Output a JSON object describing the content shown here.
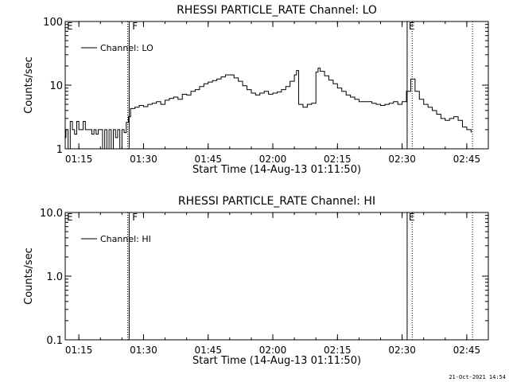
{
  "footer": "21-Oct-2021 14:54",
  "chart_data": [
    {
      "type": "line",
      "title": "RHESSI PARTICLE_RATE Channel: LO",
      "xlabel": "Start Time (14-Aug-13 01:11:50)",
      "ylabel": "Counts/sec",
      "xlim": [
        "01:11:50",
        "02:50:00"
      ],
      "ylim": [
        1,
        100
      ],
      "yscale": "log",
      "x_ticks": [
        "01:15",
        "01:30",
        "01:45",
        "02:00",
        "02:15",
        "02:30",
        "02:45"
      ],
      "y_ticks": [
        "1",
        "10",
        "100"
      ],
      "legend": "top-left",
      "series": [
        {
          "name": "Channel: LO",
          "x": [
            "01:11:50",
            "01:12:00",
            "01:12:30",
            "01:13:00",
            "01:13:30",
            "01:14:00",
            "01:14:30",
            "01:15:00",
            "01:15:30",
            "01:16:00",
            "01:16:30",
            "01:17:00",
            "01:17:30",
            "01:18:00",
            "01:18:30",
            "01:19:00",
            "01:19:30",
            "01:20:00",
            "01:20:30",
            "01:21:00",
            "01:21:30",
            "01:22:00",
            "01:22:30",
            "01:23:00",
            "01:23:30",
            "01:24:00",
            "01:24:30",
            "01:25:00",
            "01:25:30",
            "01:26:00",
            "01:26:30",
            "01:27:00",
            "01:28:00",
            "01:29:00",
            "01:30:00",
            "01:31:00",
            "01:32:00",
            "01:33:00",
            "01:34:00",
            "01:35:00",
            "01:36:00",
            "01:37:00",
            "01:38:00",
            "01:39:00",
            "01:40:00",
            "01:41:00",
            "01:42:00",
            "01:43:00",
            "01:44:00",
            "01:45:00",
            "01:46:00",
            "01:47:00",
            "01:48:00",
            "01:49:00",
            "01:50:00",
            "01:51:00",
            "01:52:00",
            "01:53:00",
            "01:54:00",
            "01:55:00",
            "01:56:00",
            "01:57:00",
            "01:58:00",
            "01:59:00",
            "02:00:00",
            "02:01:00",
            "02:02:00",
            "02:03:00",
            "02:04:00",
            "02:05:00",
            "02:05:30",
            "02:06:00",
            "02:07:00",
            "02:08:00",
            "02:09:00",
            "02:10:00",
            "02:10:30",
            "02:11:00",
            "02:12:00",
            "02:13:00",
            "02:14:00",
            "02:15:00",
            "02:16:00",
            "02:17:00",
            "02:18:00",
            "02:19:00",
            "02:20:00",
            "02:21:00",
            "02:22:00",
            "02:23:00",
            "02:24:00",
            "02:25:00",
            "02:26:00",
            "02:27:00",
            "02:28:00",
            "02:29:00",
            "02:30:00",
            "02:31:00",
            "02:32:00",
            "02:33:00",
            "02:34:00",
            "02:35:00",
            "02:36:00",
            "02:37:00",
            "02:38:00",
            "02:39:00",
            "02:40:00",
            "02:41:00",
            "02:42:00",
            "02:43:00",
            "02:44:00",
            "02:45:00",
            "02:46:00"
          ],
          "y": [
            1.5,
            2,
            1,
            2.7,
            2,
            1.7,
            2.7,
            2,
            2,
            2.7,
            2,
            2,
            2,
            1.7,
            2,
            1.7,
            2,
            2,
            1,
            2,
            1,
            2,
            1,
            2,
            1.5,
            2,
            1,
            2,
            1.8,
            2.6,
            3.2,
            4.3,
            4.5,
            4.8,
            4.6,
            5,
            5.2,
            5.5,
            5,
            5.8,
            6.2,
            6.5,
            6,
            7.2,
            7,
            8,
            8.5,
            9.5,
            10.5,
            11.2,
            11.8,
            12.5,
            13.5,
            14.5,
            14.5,
            13,
            11.5,
            9.8,
            8.5,
            7.5,
            7,
            7.5,
            8,
            7.2,
            7.5,
            7.8,
            8.5,
            9.5,
            11.5,
            14.5,
            17,
            5,
            4.5,
            5,
            5.2,
            16,
            18.5,
            16.5,
            14,
            12,
            10.5,
            9,
            8,
            7,
            6.5,
            6,
            5.5,
            5.5,
            5.5,
            5.2,
            5,
            4.8,
            5,
            5.2,
            5.5,
            5,
            5.5,
            8,
            12.5,
            8,
            6,
            5,
            4.5,
            4,
            3.5,
            3,
            2.8,
            3,
            3.2,
            2.8,
            2.2,
            2,
            1.8
          ]
        }
      ],
      "annotations": [
        {
          "label": "E",
          "x": "01:11:50"
        },
        {
          "label": "F",
          "x": "01:27:00"
        },
        {
          "label": "E",
          "x": "02:31:10"
        }
      ],
      "vlines_solid": [
        "01:26:40",
        "02:31:10"
      ],
      "vlines_dotted": [
        "01:26:20",
        "02:32:20",
        "02:46:20"
      ]
    },
    {
      "type": "line",
      "title": "RHESSI PARTICLE_RATE Channel: HI",
      "xlabel": "Start Time (14-Aug-13 01:11:50)",
      "ylabel": "Counts/sec",
      "xlim": [
        "01:11:50",
        "02:50:00"
      ],
      "ylim": [
        0.1,
        10
      ],
      "yscale": "log",
      "x_ticks": [
        "01:15",
        "01:30",
        "01:45",
        "02:00",
        "02:15",
        "02:30",
        "02:45"
      ],
      "y_ticks": [
        "0.1",
        "1.0",
        "10.0"
      ],
      "legend": "top-left",
      "series": [
        {
          "name": "Channel: HI",
          "x": [],
          "y": []
        }
      ],
      "annotations": [
        {
          "label": "E",
          "x": "01:11:50"
        },
        {
          "label": "F",
          "x": "01:27:00"
        },
        {
          "label": "E",
          "x": "02:31:10"
        }
      ],
      "vlines_solid": [
        "01:26:40",
        "02:31:10"
      ],
      "vlines_dotted": [
        "01:26:20",
        "02:32:20",
        "02:46:20"
      ]
    }
  ]
}
